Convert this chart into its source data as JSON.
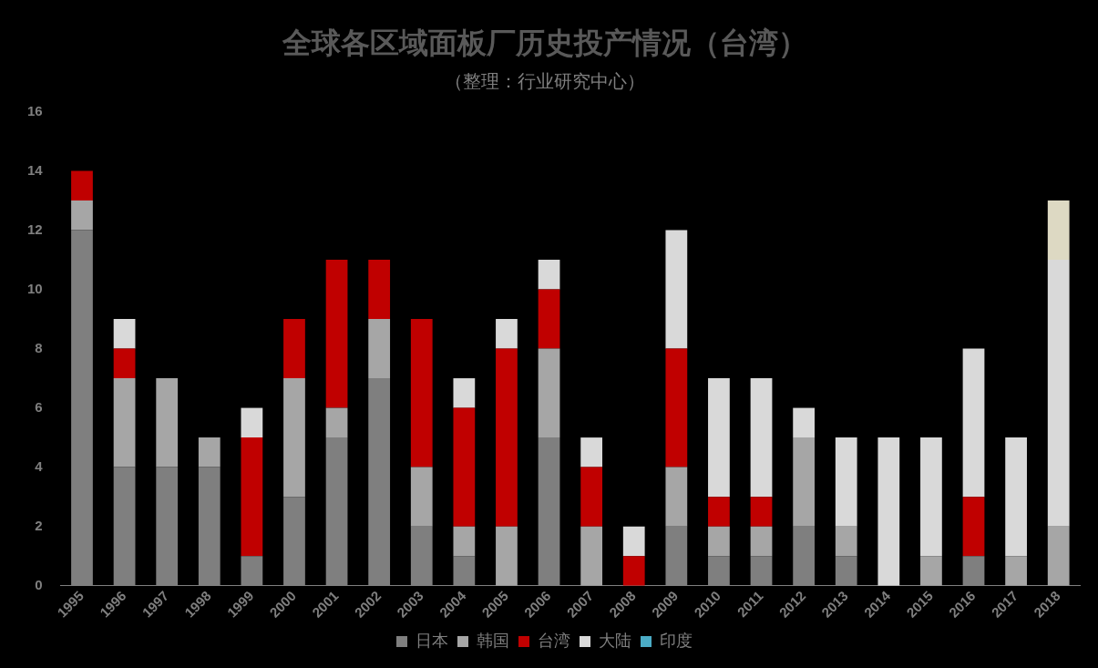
{
  "chart_data": {
    "type": "bar",
    "title": "全球各区域面板厂历史投产情况（台湾）",
    "subtitle": "（整理：行业研究中心）",
    "categories": [
      "1995",
      "1996",
      "1997",
      "1998",
      "1999",
      "2000",
      "2001",
      "2002",
      "2003",
      "2004",
      "2005",
      "2006",
      "2007",
      "2008",
      "2009",
      "2010",
      "2011",
      "2012",
      "2013",
      "2014",
      "2015",
      "2016",
      "2017",
      "2018"
    ],
    "stacked": true,
    "ylim": [
      0,
      16
    ],
    "yticks": [
      0,
      2,
      4,
      6,
      8,
      10,
      12,
      14,
      16
    ],
    "grid": false,
    "legend": "bottom",
    "series": [
      {
        "name": "日本",
        "color": "#7f7f7f",
        "values": [
          12,
          4,
          4,
          4,
          1,
          3,
          5,
          7,
          2,
          1,
          0,
          5,
          0,
          0,
          2,
          1,
          1,
          2,
          1,
          0,
          0,
          1,
          0,
          0
        ]
      },
      {
        "name": "韩国",
        "color": "#a6a6a6",
        "values": [
          1,
          3,
          3,
          1,
          0,
          4,
          1,
          2,
          2,
          1,
          2,
          3,
          2,
          0,
          2,
          1,
          1,
          3,
          1,
          0,
          1,
          0,
          1,
          2
        ]
      },
      {
        "name": "台湾",
        "color": "#c00000",
        "values": [
          1,
          1,
          0,
          0,
          4,
          2,
          5,
          2,
          5,
          4,
          6,
          2,
          2,
          1,
          4,
          1,
          1,
          0,
          0,
          0,
          0,
          2,
          0,
          0
        ]
      },
      {
        "name": "大陆",
        "color": "#d9d9d9",
        "values": [
          0,
          1,
          0,
          0,
          1,
          0,
          0,
          0,
          0,
          1,
          1,
          1,
          1,
          1,
          4,
          4,
          4,
          1,
          3,
          5,
          4,
          5,
          4,
          9
        ]
      },
      {
        "name": "印度",
        "color": "#4bacc6",
        "values": [
          0,
          0,
          0,
          0,
          0,
          0,
          0,
          0,
          0,
          0,
          0,
          0,
          0,
          0,
          0,
          0,
          0,
          0,
          0,
          0,
          0,
          0,
          0,
          0
        ]
      },
      {
        "color": "#ddd9c3",
        "values": [
          0,
          0,
          0,
          0,
          0,
          0,
          0,
          0,
          0,
          0,
          0,
          0,
          0,
          0,
          0,
          0,
          0,
          0,
          0,
          0,
          0,
          0,
          0,
          2
        ]
      }
    ]
  }
}
